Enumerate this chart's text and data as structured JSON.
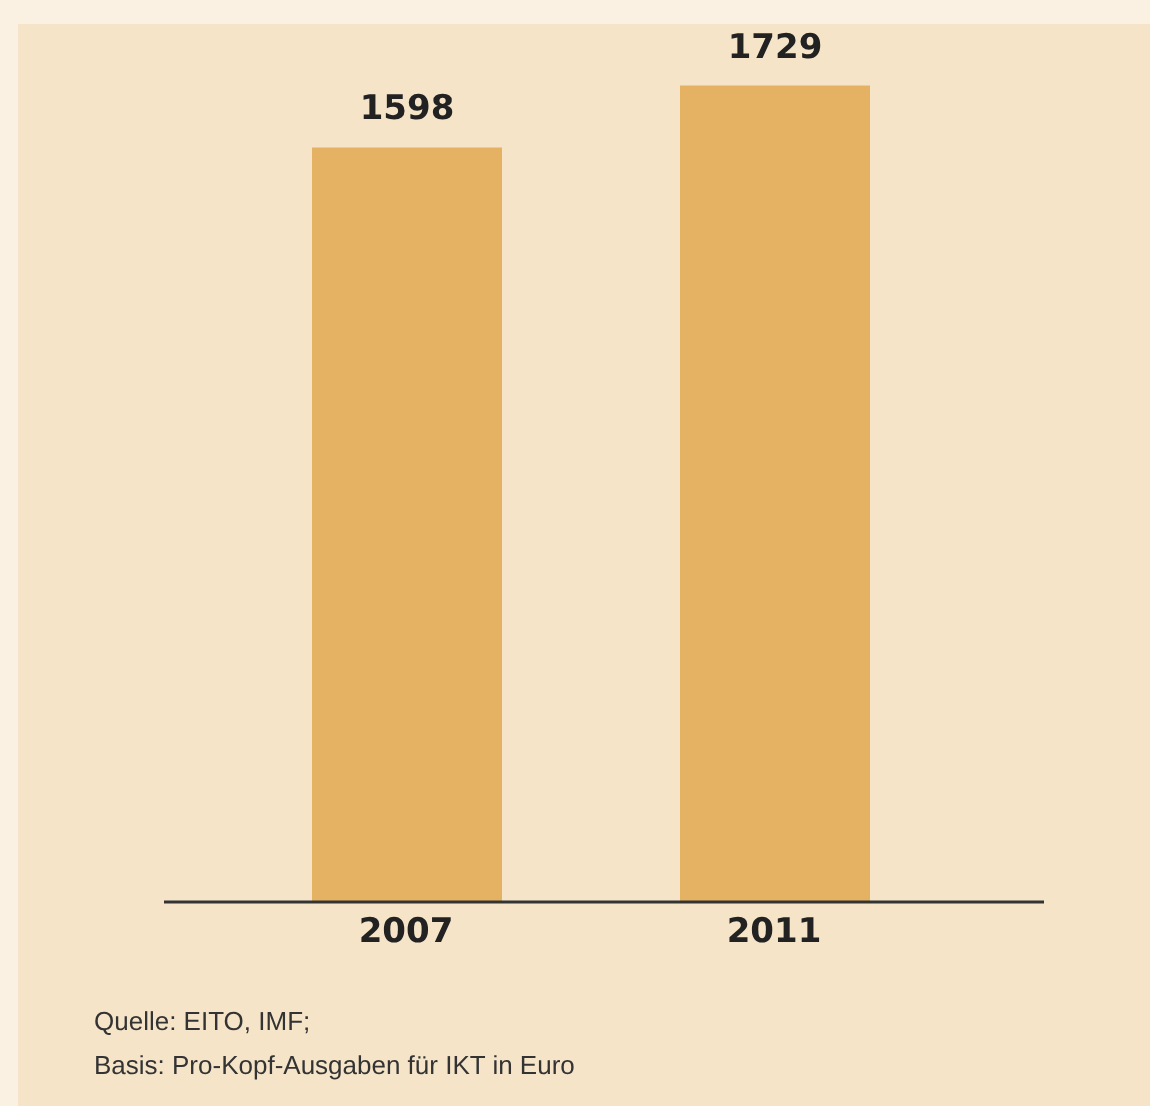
{
  "chart_data": {
    "type": "bar",
    "categories": [
      "2007",
      "2011"
    ],
    "values": [
      1598,
      1729
    ],
    "color": "#e5b264",
    "data_labels": true,
    "annotations": [
      "Quelle: EITO, IMF;",
      "Basis: Pro-Kopf-Ausgaben für IKT in Euro"
    ]
  }
}
